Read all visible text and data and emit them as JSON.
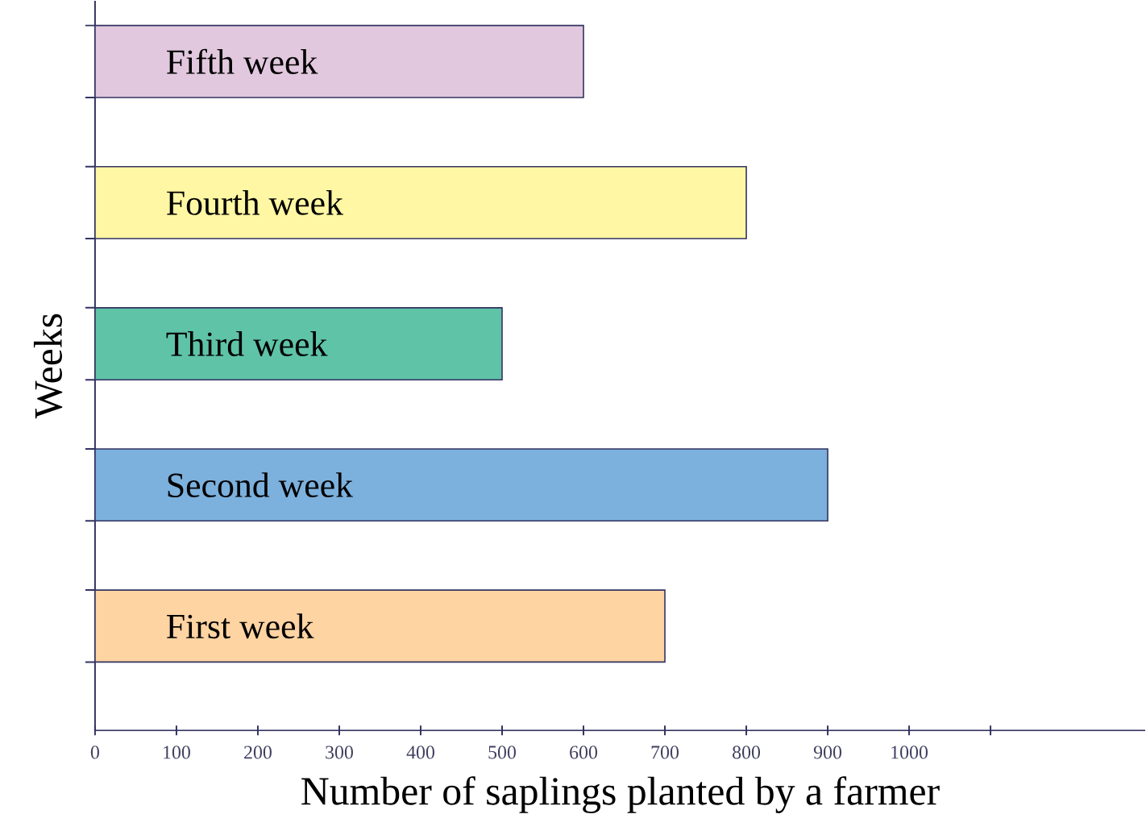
{
  "chart_data": {
    "type": "bar",
    "orientation": "horizontal",
    "xlabel": "Number of saplings planted by a farmer",
    "ylabel": "Weeks",
    "categories": [
      "Fifth week",
      "Fourth week",
      "Third week",
      "Second week",
      "First week"
    ],
    "values": [
      600,
      800,
      500,
      900,
      700
    ],
    "colors": [
      "#e2c8de",
      "#fff7a3",
      "#5fc3a8",
      "#7cb0dd",
      "#fdd4a2"
    ],
    "xlim": [
      0,
      1290
    ],
    "xticks": [
      0,
      100,
      200,
      300,
      400,
      500,
      600,
      700,
      800,
      900,
      1000,
      {
        "value": 1100,
        "label": null
      }
    ]
  }
}
